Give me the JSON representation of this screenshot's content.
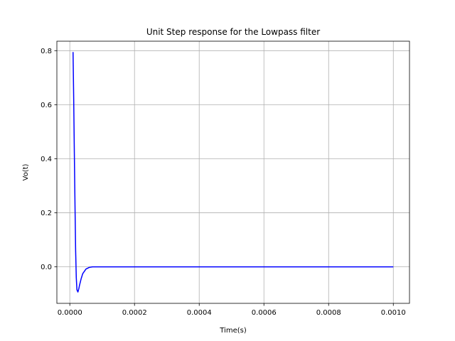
{
  "chart_data": {
    "type": "line",
    "title": "Unit Step response for the Lowpass filter",
    "xlabel": "Time(s)",
    "ylabel": "Vo(t)",
    "xlim": [
      -4e-05,
      0.00105
    ],
    "ylim": [
      -0.135,
      0.835
    ],
    "grid": true,
    "xticks": [
      0.0,
      0.0002,
      0.0004,
      0.0006,
      0.0008,
      0.001
    ],
    "xtick_labels": [
      "0.0000",
      "0.0002",
      "0.0004",
      "0.0006",
      "0.0008",
      "0.0010"
    ],
    "yticks": [
      0.0,
      0.2,
      0.4,
      0.6,
      0.8
    ],
    "ytick_labels": [
      "0.0",
      "0.2",
      "0.4",
      "0.6",
      "0.8"
    ],
    "series": [
      {
        "color": "#0000ff",
        "x": [
          1e-05,
          1.2e-05,
          1.4e-05,
          1.6e-05,
          1.8e-05,
          2e-05,
          2.2e-05,
          2.5e-05,
          2.8e-05,
          3e-05,
          3.5e-05,
          4e-05,
          5e-05,
          6e-05,
          7e-05,
          8e-05,
          9e-05,
          0.0001,
          0.00012,
          0.00015,
          0.0002,
          0.0003,
          0.0004,
          0.0006,
          0.0008,
          0.001
        ],
        "y": [
          0.795,
          0.62,
          0.42,
          0.23,
          0.06,
          -0.04,
          -0.085,
          -0.093,
          -0.08,
          -0.068,
          -0.044,
          -0.025,
          -0.008,
          -0.002,
          0.0,
          0.0,
          0.0,
          0.0,
          0.0,
          0.0,
          0.0,
          0.0,
          0.0,
          0.0,
          0.0,
          0.0
        ]
      }
    ]
  }
}
